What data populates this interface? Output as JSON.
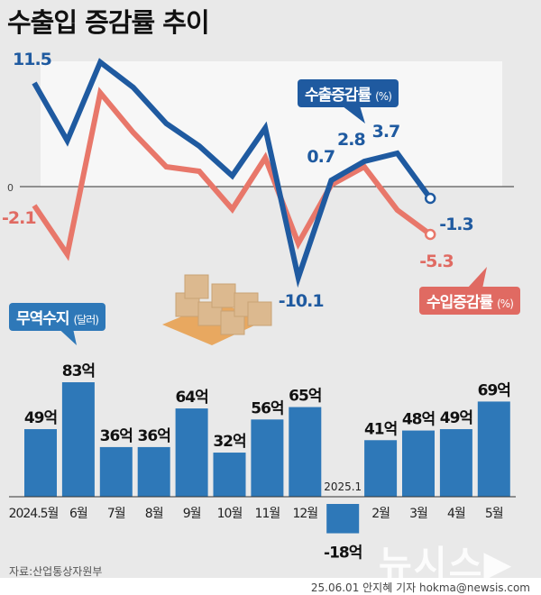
{
  "title": "수출입 증감률 추이",
  "source": "자료:산업통상자원부",
  "credit": "25.06.01 안지혜 기자 hokma@newsis.com",
  "logo": "뉴시스",
  "colors": {
    "export": "#1f5aa0",
    "import": "#e8776a",
    "bar": "#2e78b8"
  },
  "chart_data": [
    {
      "type": "line",
      "categories": [
        "2024.5월",
        "6월",
        "7월",
        "8월",
        "9월",
        "10월",
        "11월",
        "12월",
        "2025.1",
        "2월",
        "3월",
        "4월",
        "5월"
      ],
      "zero_label": "0",
      "series": [
        {
          "name": "수출증감률",
          "unit": "(%)",
          "values": [
            11.5,
            5.1,
            13.8,
            11.0,
            7.0,
            4.5,
            1.2,
            6.5,
            -10.1,
            0.7,
            2.8,
            3.7,
            -1.3
          ],
          "labels": [
            {
              "index": 0,
              "text": "11.5"
            },
            {
              "index": 8,
              "text": "-10.1"
            },
            {
              "index": 9,
              "text": "0.7"
            },
            {
              "index": 10,
              "text": "2.8"
            },
            {
              "index": 11,
              "text": "3.7"
            },
            {
              "index": 12,
              "text": "-1.3"
            }
          ]
        },
        {
          "name": "수입증감률",
          "unit": "(%)",
          "values": [
            -2.1,
            -7.5,
            10.4,
            6.0,
            2.2,
            1.7,
            -2.5,
            3.2,
            -6.3,
            0.2,
            2.2,
            -2.6,
            -5.3
          ],
          "labels": [
            {
              "index": 0,
              "text": "-2.1"
            },
            {
              "index": 12,
              "text": "-5.3"
            }
          ]
        }
      ]
    },
    {
      "type": "bar",
      "name": "무역수지",
      "unit": "(달러)",
      "categories": [
        "2024.5월",
        "6월",
        "7월",
        "8월",
        "9월",
        "10월",
        "11월",
        "12월",
        "2025.1",
        "2월",
        "3월",
        "4월",
        "5월"
      ],
      "values": [
        49,
        83,
        36,
        36,
        64,
        32,
        56,
        65,
        -18,
        41,
        48,
        49,
        69
      ],
      "value_labels": [
        "49억",
        "83억",
        "36억",
        "36억",
        "64억",
        "32억",
        "56억",
        "65억",
        "-18억",
        "41억",
        "48억",
        "49억",
        "69억"
      ],
      "unit_suffix": "억 달러"
    }
  ]
}
